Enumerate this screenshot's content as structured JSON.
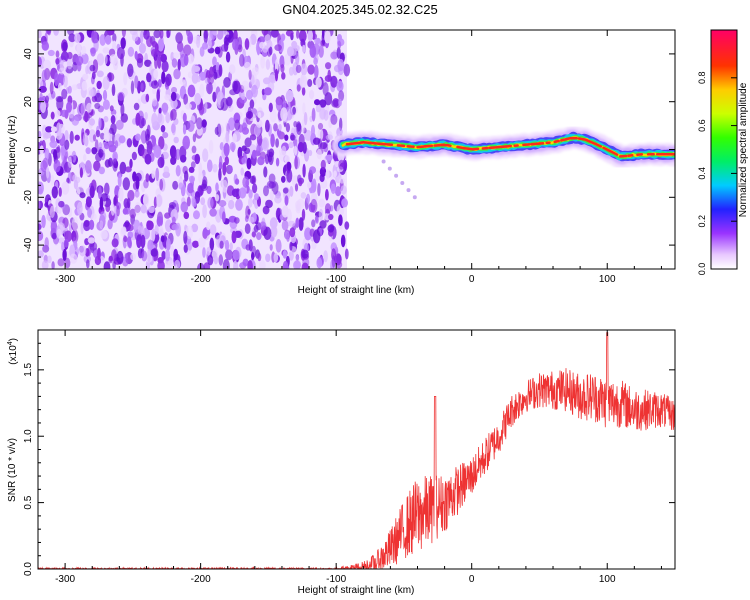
{
  "title": "GN04.2025.345.02.32.C25",
  "colors": {
    "snr_line": "#ee3333",
    "noise_fill": "#8a2be2",
    "background": "#ffffff"
  },
  "chart_data": [
    {
      "type": "heatmap",
      "name": "spectrogram",
      "xlabel": "Height of straight line (km)",
      "ylabel": "Frequency (Hz)",
      "xlim": [
        -320,
        150
      ],
      "ylim": [
        -50,
        50
      ],
      "x_ticks": [
        -300,
        -200,
        -100,
        0,
        100
      ],
      "x_tick_labels": [
        "-300",
        "-200",
        "-100",
        "0",
        "100"
      ],
      "y_ticks": [
        -40,
        -20,
        0,
        20,
        40
      ],
      "y_tick_labels": [
        "-40",
        "-20",
        "0",
        "20",
        "40"
      ],
      "noise_region_x": [
        -320,
        -92
      ],
      "ridge": {
        "x": [
          -95,
          -80,
          -60,
          -40,
          -20,
          0,
          20,
          40,
          60,
          75,
          85,
          100,
          110,
          125,
          150
        ],
        "y": [
          2,
          3,
          2,
          1,
          2,
          0,
          1,
          2,
          3,
          5,
          4,
          0,
          -3,
          -2,
          -2
        ]
      },
      "tail": {
        "x": [
          -65,
          -42
        ],
        "y": [
          -5,
          -20
        ]
      },
      "colorbar": {
        "label": "Normalized spectral amplitude",
        "range": [
          0,
          1
        ],
        "ticks": [
          0.0,
          0.2,
          0.4,
          0.6,
          0.8
        ],
        "tick_labels": [
          "0.0",
          "0.2",
          "0.4",
          "0.6",
          "0.8"
        ]
      }
    },
    {
      "type": "line",
      "name": "snr",
      "xlabel": "Height of straight line (km)",
      "ylabel": "SNR (10 * v/v)",
      "y_multiplier_base": "(x10",
      "y_multiplier_exp": "4",
      "y_multiplier_close": ")",
      "xlim": [
        -320,
        150
      ],
      "ylim": [
        0,
        1.8
      ],
      "x_ticks": [
        -300,
        -200,
        -100,
        0,
        100
      ],
      "x_tick_labels": [
        "-300",
        "-200",
        "-100",
        "0",
        "100"
      ],
      "y_ticks": [
        0.0,
        0.5,
        1.0,
        1.5
      ],
      "y_tick_labels": [
        "0.0",
        "0.5",
        "1.0",
        "1.5"
      ],
      "trend": {
        "x": [
          -320,
          -100,
          -80,
          -70,
          -60,
          -50,
          -40,
          -30,
          -20,
          -10,
          0,
          10,
          20,
          30,
          40,
          50,
          60,
          70,
          80,
          90,
          100,
          110,
          120,
          130,
          140,
          150
        ],
        "y": [
          0.0,
          0.0,
          0.0,
          0.05,
          0.15,
          0.3,
          0.4,
          0.45,
          0.5,
          0.6,
          0.7,
          0.85,
          1.0,
          1.2,
          1.3,
          1.35,
          1.35,
          1.35,
          1.3,
          1.3,
          1.25,
          1.25,
          1.2,
          1.2,
          1.2,
          1.15
        ]
      },
      "noise_amplitude": {
        "x": [
          -320,
          -100,
          -70,
          -40,
          0,
          40,
          80,
          100,
          150
        ],
        "y": [
          0.01,
          0.01,
          0.08,
          0.3,
          0.15,
          0.12,
          0.18,
          0.2,
          0.12
        ]
      },
      "peaks": {
        "x": [
          -27,
          100
        ],
        "y": [
          1.3,
          1.78
        ]
      }
    }
  ]
}
